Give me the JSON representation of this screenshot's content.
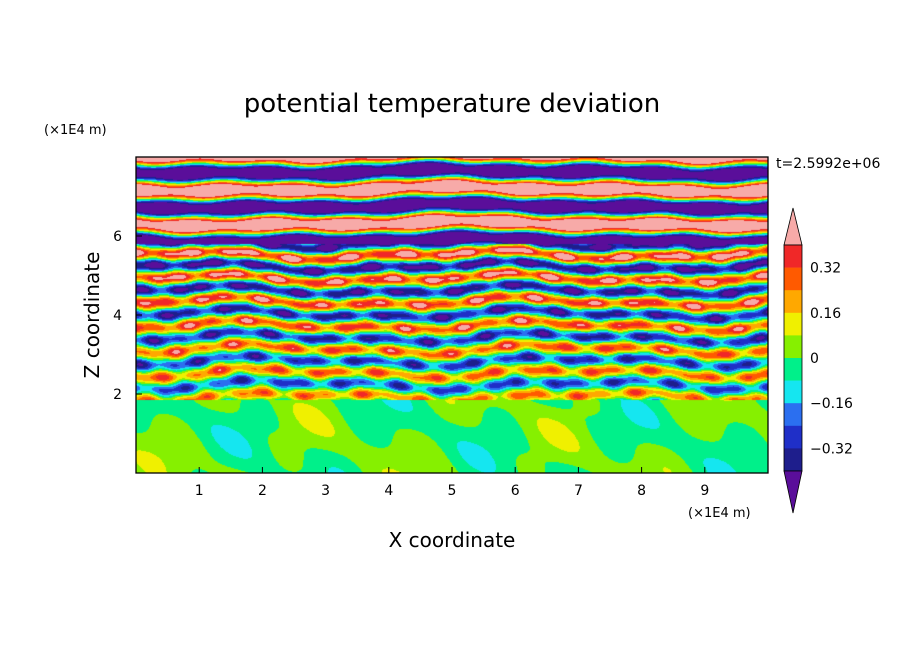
{
  "chart_data": {
    "type": "heatmap",
    "title": "potential temperature deviation",
    "xlabel": "X coordinate",
    "ylabel": "Z coordinate",
    "x_unit": "(×1E4 m)",
    "y_unit": "(×1E4 m)",
    "time_label": "t=2.5992e+06",
    "xlim": [
      0,
      10
    ],
    "ylim": [
      0,
      8
    ],
    "x_ticks": [
      "1",
      "2",
      "3",
      "4",
      "5",
      "6",
      "7",
      "8",
      "9"
    ],
    "y_ticks": [
      "2",
      "4",
      "6"
    ],
    "colorbar": {
      "levels": [
        -0.4,
        -0.32,
        -0.24,
        -0.16,
        -0.08,
        0,
        0.08,
        0.16,
        0.24,
        0.32,
        0.4
      ],
      "tick_labels": [
        "0.32",
        "0.16",
        "0",
        "−0.16",
        "−0.32"
      ],
      "colors": [
        "#5a0e9a",
        "#1e1e8c",
        "#1f2fc8",
        "#2b6ff0",
        "#15e6f0",
        "#00f08a",
        "#86f000",
        "#f0f000",
        "#ffa800",
        "#ff5a00",
        "#f02828",
        "#f7aaa8"
      ],
      "extend": "both"
    },
    "bands": [
      {
        "z": [
          0.0,
          1.85
        ],
        "level": "~0",
        "description": "green/light-green mixed"
      },
      {
        "z": [
          1.85,
          5.8
        ],
        "level": "oscillating",
        "description": "layered ±0.4"
      },
      {
        "z": [
          5.8,
          8.0
        ],
        "level": "extremes",
        "description": "alternating violet / pink"
      }
    ]
  }
}
